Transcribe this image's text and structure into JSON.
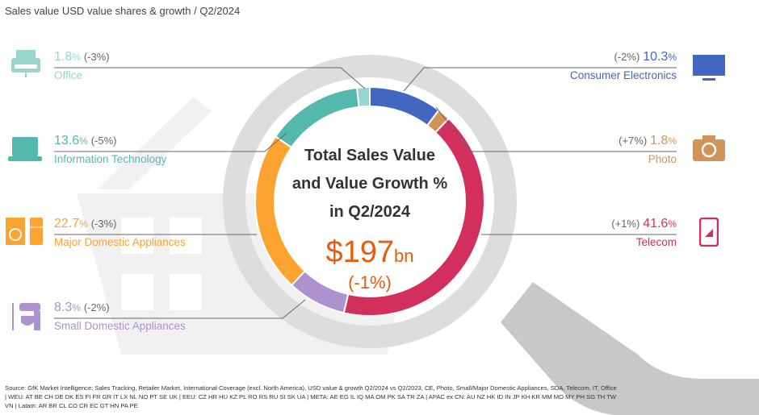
{
  "title": "Sales value USD value shares & growth / Q2/2024",
  "center": {
    "line1": "Total Sales Value",
    "line2": "and Value Growth %",
    "line3": "in Q2/2024",
    "value": "$197",
    "unit": "bn",
    "growth": "(-1%)"
  },
  "chart_data": {
    "type": "pie",
    "donut": true,
    "title": "Total Sales Value and Value Growth % in Q2/2024",
    "unit": "%",
    "slices": [
      {
        "name": "Consumer Electronics",
        "share": 10.3,
        "share_label": "10.3",
        "growth": "(-2%)",
        "color": "#4267c1",
        "icon": "tv-icon"
      },
      {
        "name": "Photo",
        "share": 1.8,
        "share_label": "1.8",
        "growth": "(+7%)",
        "color": "#d0935a",
        "icon": "camera-icon"
      },
      {
        "name": "Telecom",
        "share": 41.6,
        "share_label": "41.6",
        "growth": "(+1%)",
        "color": "#d22f5e",
        "icon": "smartphone-icon"
      },
      {
        "name": "Small Domestic Appliances",
        "share": 8.3,
        "share_label": "8.3",
        "growth": "(-2%)",
        "color": "#ad92cf",
        "icon": "mixer-icon"
      },
      {
        "name": "Major Domestic Appliances",
        "share": 22.7,
        "share_label": "22.7",
        "growth": "(-3%)",
        "color": "#fca331",
        "icon": "washer-fridge-icon"
      },
      {
        "name": "Information Technology",
        "share": 13.6,
        "share_label": "13.6",
        "growth": "(-5%)",
        "color": "#55b8ad",
        "icon": "laptop-icon"
      },
      {
        "name": "Office",
        "share": 1.8,
        "share_label": "1.8",
        "growth": "(-3%)",
        "color": "#97d5cf",
        "icon": "printer-icon"
      }
    ]
  },
  "source": "Source: GfK Market Intelligence: Sales Tracking, Retailer Market, International Coverage (excl. North America), USD value & growth Q2/2024 vs Q2/2023, CE, Photo, Small/Major Domestic Appliances, SDA, Telecom, IT, Office | WEU: AT BE CH DE DK ES FI FR GR IT LX NL NO PT SE UK | EEU: CZ HR HU KZ PL RO RS RU SI SK UA | META: AE EG IL IQ MA OM PK SA TR ZA | APAC ex CN: AU NZ HK ID IN JP KH KR MM MO MY PH SG TH TW VN | Latam: AR BR CL CO CR EC GT HN PA PE"
}
